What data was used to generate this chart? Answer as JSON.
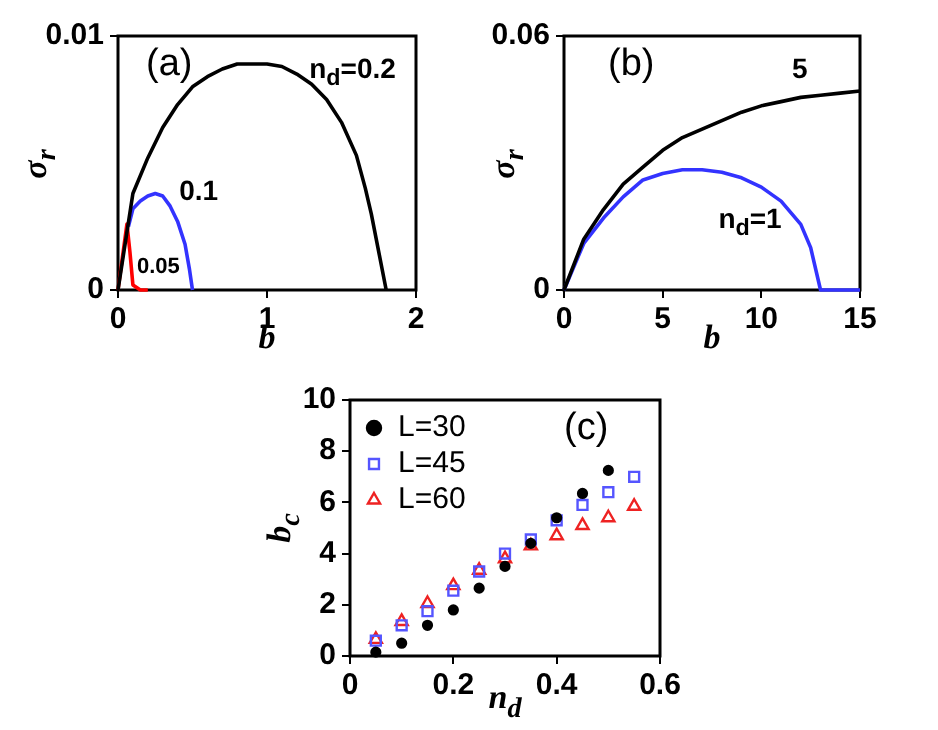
{
  "chart_data": [
    {
      "type": "line",
      "xlabel": "b",
      "ylabel": "σ$_{r}$",
      "annotations": [
        "(a)"
      ],
      "xlim": [
        0,
        2
      ],
      "xticks": [
        0,
        1,
        2
      ],
      "ylim": [
        0,
        0.01
      ],
      "yticks": [
        0,
        0.01
      ],
      "grid": false,
      "legend": false,
      "series": [
        {
          "name": "n$_{d}$=0.2",
          "color": "#000000",
          "x": [
            0,
            0.1,
            0.2,
            0.3,
            0.4,
            0.5,
            0.6,
            0.7,
            0.8,
            0.9,
            1.0,
            1.1,
            1.2,
            1.3,
            1.4,
            1.5,
            1.6,
            1.66,
            1.7,
            1.8
          ],
          "values": [
            0,
            0.0038,
            0.0052,
            0.0064,
            0.0073,
            0.008,
            0.0084,
            0.0087,
            0.0089,
            0.0089,
            0.0089,
            0.0088,
            0.0085,
            0.0081,
            0.0075,
            0.0066,
            0.0053,
            0.004,
            0.003,
            0
          ]
        },
        {
          "name": "0.1",
          "color": "#3333ff",
          "x": [
            0.07,
            0.1,
            0.15,
            0.2,
            0.25,
            0.3,
            0.35,
            0.4,
            0.45,
            0.48,
            0.5
          ],
          "values": [
            0.0025,
            0.0032,
            0.0035,
            0.0037,
            0.0038,
            0.0037,
            0.0033,
            0.0027,
            0.0018,
            0.0008,
            0
          ]
        },
        {
          "name": "0.05",
          "color": "#ff0000",
          "x": [
            0,
            0.06,
            0.08,
            0.1,
            0.15,
            0.2
          ],
          "values": [
            0,
            0.0026,
            0.0015,
            0.0002,
            0,
            0
          ]
        }
      ]
    },
    {
      "type": "line",
      "xlabel": "b",
      "ylabel": "σ$_{r}$",
      "annotations": [
        "(b)"
      ],
      "xlim": [
        0,
        15
      ],
      "xticks": [
        0,
        5,
        10,
        15
      ],
      "ylim": [
        0,
        0.06
      ],
      "yticks": [
        0,
        0.06
      ],
      "grid": false,
      "legend": false,
      "series": [
        {
          "name": "5",
          "color": "#000000",
          "x": [
            0,
            1,
            2,
            3,
            4,
            5,
            6,
            7,
            8,
            9,
            10,
            11,
            12,
            13,
            14,
            15
          ],
          "values": [
            0,
            0.012,
            0.019,
            0.025,
            0.029,
            0.033,
            0.036,
            0.038,
            0.04,
            0.042,
            0.0435,
            0.0445,
            0.0455,
            0.046,
            0.0465,
            0.047
          ]
        },
        {
          "name": "n$_{d}$=1",
          "color": "#3333ff",
          "x": [
            0,
            1,
            2,
            3,
            4,
            5,
            6,
            7,
            8,
            9,
            10,
            11,
            12,
            12.5,
            13,
            14,
            15
          ],
          "values": [
            0,
            0.011,
            0.017,
            0.022,
            0.026,
            0.0275,
            0.0284,
            0.0284,
            0.0278,
            0.0265,
            0.0243,
            0.021,
            0.0155,
            0.01,
            0,
            0,
            0
          ]
        }
      ]
    },
    {
      "type": "scatter",
      "xlabel": "n$_{d}$",
      "ylabel": "b$_{c}$",
      "annotations": [
        "(c)"
      ],
      "xlim": [
        0,
        0.6
      ],
      "xticks": [
        0,
        0.2,
        0.4,
        0.6
      ],
      "ylim": [
        0,
        10
      ],
      "yticks": [
        0,
        2,
        4,
        6,
        8,
        10
      ],
      "grid": false,
      "legend": "top left",
      "series": [
        {
          "name": "L=30",
          "color": "#000000",
          "marker": "circle",
          "x": [
            0.05,
            0.1,
            0.15,
            0.2,
            0.25,
            0.3,
            0.35,
            0.4,
            0.45,
            0.5
          ],
          "values": [
            0.15,
            0.5,
            1.2,
            1.8,
            2.65,
            3.5,
            4.4,
            5.4,
            6.35,
            7.25
          ]
        },
        {
          "name": "L=45",
          "color": "#5555ff",
          "marker": "square",
          "x": [
            0.05,
            0.1,
            0.15,
            0.2,
            0.25,
            0.3,
            0.35,
            0.4,
            0.45,
            0.5,
            0.55
          ],
          "values": [
            0.6,
            1.2,
            1.75,
            2.55,
            3.3,
            4.0,
            4.55,
            5.3,
            5.9,
            6.4,
            7.0
          ]
        },
        {
          "name": "L=60",
          "color": "#ee2222",
          "marker": "triangle",
          "x": [
            0.05,
            0.1,
            0.15,
            0.2,
            0.25,
            0.3,
            0.35,
            0.4,
            0.45,
            0.5,
            0.55
          ],
          "values": [
            0.65,
            1.35,
            2.05,
            2.75,
            3.35,
            3.8,
            4.3,
            4.7,
            5.1,
            5.4,
            5.85
          ]
        }
      ]
    }
  ]
}
